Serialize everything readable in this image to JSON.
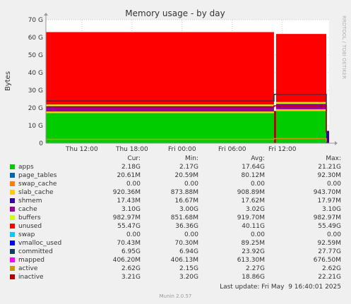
{
  "chart_data": {
    "type": "area",
    "title": "Memory usage - by day",
    "ylabel": "Bytes",
    "ylim": [
      0,
      70
    ],
    "y_unit": "G",
    "y_ticks": [
      0,
      10,
      20,
      30,
      40,
      50,
      60,
      70
    ],
    "y_tick_labels": [
      "0",
      "10 G",
      "20 G",
      "30 G",
      "40 G",
      "50 G",
      "60 G",
      "70 G"
    ],
    "x_ticks": [
      {
        "t": 0.0,
        "label": "Thu 12:00"
      },
      {
        "t": 6.0,
        "label": "Thu 18:00"
      },
      {
        "t": 12.0,
        "label": "Fri 00:00"
      },
      {
        "t": 18.0,
        "label": "Fri 06:00"
      },
      {
        "t": 24.0,
        "label": "Fri 12:00"
      }
    ],
    "x_range": [
      -4.3,
      29.6
    ],
    "x_break": 23.0,
    "grid": true,
    "stacked_series": [
      {
        "name": "apps",
        "color": "#00cc00",
        "before": 17.0,
        "after": 18.3
      },
      {
        "name": "page_tables",
        "color": "#0066b3",
        "before": 0.08,
        "after": 0.02
      },
      {
        "name": "swap_cache",
        "color": "#ff8000",
        "before": 0.0,
        "after": 0.0
      },
      {
        "name": "slab_cache",
        "color": "#ffcc00",
        "before": 0.9,
        "after": 0.92
      },
      {
        "name": "shmem",
        "color": "#330099",
        "before": 0.018,
        "after": 0.017
      },
      {
        "name": "cache",
        "color": "#990099",
        "before": 3.0,
        "after": 3.1
      },
      {
        "name": "buffers",
        "color": "#ccff00",
        "before": 0.9,
        "after": 0.98
      },
      {
        "name": "unused",
        "color": "#ff0000",
        "before": 41.1,
        "after": 38.6
      }
    ],
    "line_series": [
      {
        "name": "committed",
        "color": "#0f3c5f",
        "before": 23.9,
        "after": 27.7
      },
      {
        "name": "inactive",
        "color": "#b30000",
        "before": 20.6,
        "after": 21.2
      },
      {
        "name": "active",
        "color": "#cc9900",
        "before": 2.2,
        "after": 2.6
      }
    ],
    "legend_columns": [
      "Cur:",
      "Min:",
      "Avg:",
      "Max:"
    ],
    "legend": [
      {
        "name": "apps",
        "color": "#00cc00",
        "cur": "2.18G",
        "min": "2.17G",
        "avg": "17.64G",
        "max": "21.21G"
      },
      {
        "name": "page_tables",
        "color": "#0066b3",
        "cur": "20.61M",
        "min": "20.59M",
        "avg": "80.12M",
        "max": "92.30M"
      },
      {
        "name": "swap_cache",
        "color": "#ff8000",
        "cur": "0.00",
        "min": "0.00",
        "avg": "0.00",
        "max": "0.00"
      },
      {
        "name": "slab_cache",
        "color": "#ffcc00",
        "cur": "920.36M",
        "min": "873.88M",
        "avg": "908.89M",
        "max": "943.70M"
      },
      {
        "name": "shmem",
        "color": "#330099",
        "cur": "17.43M",
        "min": "16.67M",
        "avg": "17.62M",
        "max": "17.97M"
      },
      {
        "name": "cache",
        "color": "#990099",
        "cur": "3.10G",
        "min": "3.00G",
        "avg": "3.02G",
        "max": "3.10G"
      },
      {
        "name": "buffers",
        "color": "#ccff00",
        "cur": "982.97M",
        "min": "851.68M",
        "avg": "919.70M",
        "max": "982.97M"
      },
      {
        "name": "unused",
        "color": "#ff0000",
        "cur": "55.47G",
        "min": "36.36G",
        "avg": "40.11G",
        "max": "55.49G"
      },
      {
        "name": "swap",
        "color": "#00ccff",
        "cur": "0.00",
        "min": "0.00",
        "avg": "0.00",
        "max": "0.00"
      },
      {
        "name": "vmalloc_used",
        "color": "#0000ff",
        "cur": "70.43M",
        "min": "70.30M",
        "avg": "89.25M",
        "max": "92.59M"
      },
      {
        "name": "committed",
        "color": "#0f3c5f",
        "cur": "6.95G",
        "min": "6.94G",
        "avg": "23.92G",
        "max": "27.77G"
      },
      {
        "name": "mapped",
        "color": "#ff00ff",
        "cur": "406.20M",
        "min": "406.13M",
        "avg": "613.30M",
        "max": "676.50M"
      },
      {
        "name": "active",
        "color": "#cc9900",
        "cur": "2.62G",
        "min": "2.15G",
        "avg": "2.27G",
        "max": "2.62G"
      },
      {
        "name": "inactive",
        "color": "#b30000",
        "cur": "3.21G",
        "min": "3.20G",
        "avg": "18.86G",
        "max": "22.21G"
      }
    ]
  },
  "footer": {
    "last_update": "Last update: Fri May  9 16:40:01 2025",
    "version": "Munin 2.0.57"
  },
  "side_text": "RRDTOOL / TOBI OETIKER"
}
